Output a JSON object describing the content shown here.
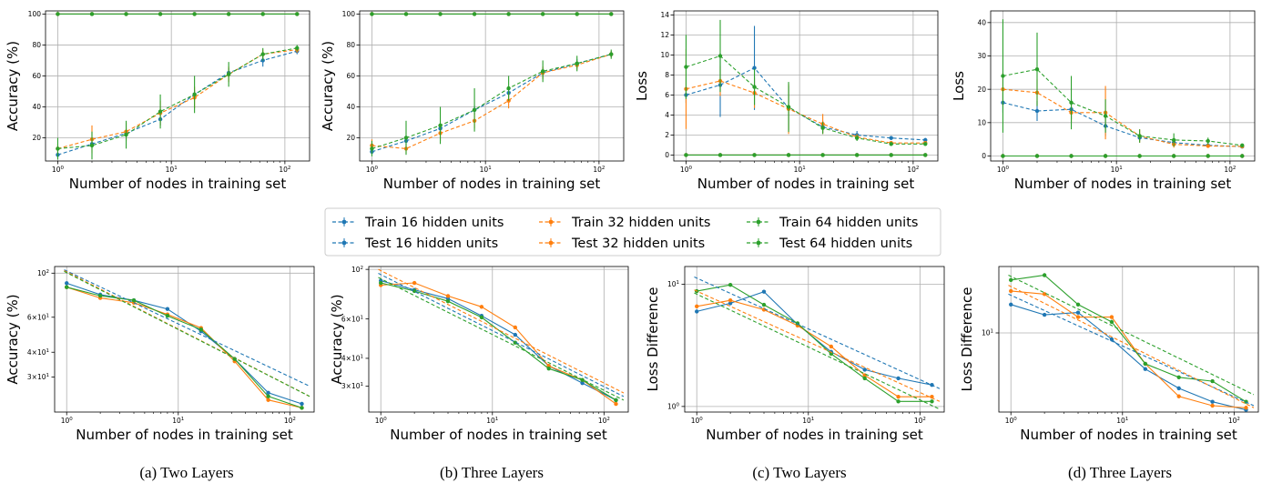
{
  "colors": {
    "blue": "#1f77b4",
    "orange": "#ff7f0e",
    "green": "#2ca02c"
  },
  "x_values": [
    1,
    2,
    4,
    8,
    16,
    32,
    64,
    128
  ],
  "legend": {
    "placement": "center",
    "entries": [
      {
        "label": "Train 16 hidden units",
        "color": "#1f77b4"
      },
      {
        "label": "Test 16 hidden units",
        "color": "#1f77b4"
      },
      {
        "label": "Train 32 hidden units",
        "color": "#ff7f0e"
      },
      {
        "label": "Test 32 hidden units",
        "color": "#ff7f0e"
      },
      {
        "label": "Train 64 hidden units",
        "color": "#2ca02c"
      },
      {
        "label": "Test 64 hidden units",
        "color": "#2ca02c"
      }
    ]
  },
  "captions": [
    "(a) Two Layers",
    "(b) Three Layers",
    "(c) Two Layers",
    "(d) Three Layers"
  ],
  "chart_data": [
    {
      "type": "line",
      "xlabel": "Number of nodes in training set",
      "ylabel": "Accuracy (%)",
      "xscale": "log",
      "ylim": [
        5,
        102
      ],
      "yticks": [
        20,
        40,
        60,
        80,
        100
      ],
      "grid": true,
      "series": [
        {
          "color": "#1f77b4",
          "values": [
            100,
            100,
            100,
            100,
            100,
            100,
            100,
            100
          ]
        },
        {
          "color": "#ff7f0e",
          "values": [
            100,
            100,
            100,
            100,
            100,
            100,
            100,
            100
          ]
        },
        {
          "color": "#2ca02c",
          "values": [
            100,
            100,
            100,
            100,
            100,
            100,
            100,
            100
          ]
        },
        {
          "color": "#1f77b4",
          "dashed": true,
          "values": [
            9,
            16,
            23,
            32,
            48,
            62,
            70,
            76
          ],
          "err": [
            2,
            3,
            3,
            4,
            3,
            3,
            4,
            2
          ]
        },
        {
          "color": "#ff7f0e",
          "dashed": true,
          "values": [
            13,
            19,
            24,
            36,
            46,
            61,
            74,
            77
          ],
          "err": [
            3,
            9,
            6,
            8,
            7,
            5,
            3,
            2
          ]
        },
        {
          "color": "#2ca02c",
          "dashed": true,
          "values": [
            13,
            15,
            22,
            37,
            48,
            61,
            74,
            78
          ],
          "err": [
            7,
            9,
            9,
            11,
            12,
            8,
            4,
            2
          ]
        }
      ]
    },
    {
      "type": "line",
      "xlabel": "Number of nodes in training set",
      "ylabel": "Accuracy (%)",
      "xscale": "log",
      "ylim": [
        5,
        102
      ],
      "yticks": [
        20,
        40,
        60,
        80,
        100
      ],
      "grid": true,
      "series": [
        {
          "color": "#1f77b4",
          "values": [
            100,
            100,
            100,
            100,
            100,
            100,
            100,
            100
          ]
        },
        {
          "color": "#ff7f0e",
          "values": [
            100,
            100,
            100,
            100,
            100,
            100,
            100,
            100
          ]
        },
        {
          "color": "#2ca02c",
          "values": [
            100,
            100,
            100,
            100,
            100,
            100,
            100,
            100
          ]
        },
        {
          "color": "#1f77b4",
          "dashed": true,
          "values": [
            11,
            18,
            26,
            38,
            49,
            62,
            68,
            74
          ],
          "err": [
            2,
            3,
            3,
            3,
            3,
            3,
            3,
            2
          ]
        },
        {
          "color": "#ff7f0e",
          "dashed": true,
          "values": [
            15,
            13,
            23,
            31,
            44,
            62,
            67,
            74
          ],
          "err": [
            4,
            3,
            5,
            5,
            5,
            4,
            3,
            2
          ]
        },
        {
          "color": "#2ca02c",
          "dashed": true,
          "values": [
            13,
            20,
            28,
            38,
            52,
            63,
            68,
            74
          ],
          "err": [
            5,
            11,
            12,
            14,
            8,
            7,
            5,
            3
          ]
        }
      ]
    },
    {
      "type": "line",
      "xlabel": "Number of nodes in training set",
      "ylabel": "Loss",
      "xscale": "log",
      "ylim": [
        -0.6,
        14.4
      ],
      "yticks": [
        0,
        2,
        4,
        6,
        8,
        10,
        12,
        14
      ],
      "grid": true,
      "series": [
        {
          "color": "#1f77b4",
          "values": [
            0,
            0,
            0,
            0,
            0,
            0,
            0,
            0
          ]
        },
        {
          "color": "#ff7f0e",
          "values": [
            0,
            0,
            0,
            0,
            0,
            0,
            0,
            0
          ]
        },
        {
          "color": "#2ca02c",
          "values": [
            0,
            0,
            0,
            0,
            0,
            0,
            0,
            0
          ]
        },
        {
          "color": "#1f77b4",
          "dashed": true,
          "values": [
            6.0,
            7.0,
            8.7,
            4.7,
            2.8,
            2.0,
            1.7,
            1.5
          ],
          "err": [
            0.8,
            3.2,
            4.2,
            2.2,
            0.6,
            0.4,
            0.2,
            0.2
          ]
        },
        {
          "color": "#ff7f0e",
          "dashed": true,
          "values": [
            6.6,
            7.4,
            6.2,
            4.6,
            3.1,
            1.8,
            1.2,
            1.2
          ],
          "err": [
            4.0,
            1.5,
            1.5,
            2.5,
            1.0,
            0.3,
            0.2,
            0.1
          ]
        },
        {
          "color": "#2ca02c",
          "dashed": true,
          "values": [
            8.8,
            9.9,
            6.8,
            4.8,
            2.7,
            1.7,
            1.1,
            1.1
          ],
          "err": [
            3.2,
            3.6,
            1.8,
            2.5,
            0.6,
            0.3,
            0.2,
            0.1
          ]
        }
      ]
    },
    {
      "type": "line",
      "xlabel": "Number of nodes in training set",
      "ylabel": "Loss",
      "xscale": "log",
      "ylim": [
        -1.5,
        43.5
      ],
      "yticks": [
        0,
        10,
        20,
        30,
        40
      ],
      "grid": true,
      "series": [
        {
          "color": "#1f77b4",
          "values": [
            0,
            0,
            0,
            0,
            0,
            0,
            0,
            0
          ]
        },
        {
          "color": "#ff7f0e",
          "values": [
            0,
            0,
            0,
            0,
            0,
            0,
            0,
            0
          ]
        },
        {
          "color": "#2ca02c",
          "values": [
            0,
            0,
            0,
            0,
            0,
            0,
            0,
            0
          ]
        },
        {
          "color": "#1f77b4",
          "dashed": true,
          "values": [
            16,
            13.5,
            14,
            9,
            5.5,
            4,
            3.2,
            2.8
          ],
          "err": [
            3,
            3,
            3,
            3,
            1,
            1,
            0.5,
            0.4
          ]
        },
        {
          "color": "#ff7f0e",
          "dashed": true,
          "values": [
            20,
            19,
            13,
            13,
            6,
            3.5,
            3,
            2.9
          ],
          "err": [
            5,
            4,
            3,
            8,
            2,
            1,
            0.5,
            0.4
          ]
        },
        {
          "color": "#2ca02c",
          "dashed": true,
          "values": [
            24,
            26,
            16,
            12,
            6,
            4.8,
            4.5,
            3.2
          ],
          "err": [
            17,
            11,
            8,
            5,
            2,
            2,
            1,
            0.5
          ]
        }
      ]
    },
    {
      "type": "line",
      "xlabel": "Number of nodes in training set",
      "ylabel": "Accuracy (%)",
      "xscale": "log",
      "yscale": "log",
      "ylim": [
        20,
        108
      ],
      "ytick_labels": [
        "10^2",
        "6×10^1",
        "4×10^1",
        "3×10^1"
      ],
      "series": [
        {
          "color": "#1f77b4",
          "values": [
            89,
            78,
            73,
            66,
            51,
            37,
            25,
            22
          ]
        },
        {
          "color": "#ff7f0e",
          "values": [
            85,
            75,
            71,
            62,
            53,
            36,
            23,
            21
          ]
        },
        {
          "color": "#2ca02c",
          "values": [
            85,
            77,
            73,
            61,
            52,
            37,
            24,
            21
          ]
        },
        {
          "color": "#1f77b4",
          "dashed": true,
          "fit": [
            104,
            27
          ]
        },
        {
          "color": "#ff7f0e",
          "dashed": true,
          "fit": [
            103,
            24
          ]
        },
        {
          "color": "#2ca02c",
          "dashed": true,
          "fit": [
            102,
            24
          ]
        }
      ]
    },
    {
      "type": "line",
      "xlabel": "Number of nodes in training set",
      "ylabel": "Accuracy (%)",
      "xscale": "log",
      "yscale": "log",
      "ylim": [
        23,
        103
      ],
      "ytick_labels": [
        "10^2",
        "6×10^1",
        "4×10^1",
        "3×10^1"
      ],
      "series": [
        {
          "color": "#1f77b4",
          "values": [
            89,
            81,
            74,
            62,
            51,
            37,
            31,
            26
          ]
        },
        {
          "color": "#ff7f0e",
          "values": [
            85,
            87,
            76,
            68,
            55,
            37,
            32,
            25
          ]
        },
        {
          "color": "#2ca02c",
          "values": [
            87,
            80,
            72,
            61,
            47,
            36,
            32,
            26
          ]
        },
        {
          "color": "#1f77b4",
          "dashed": true,
          "fit": [
            96,
            27
          ]
        },
        {
          "color": "#ff7f0e",
          "dashed": true,
          "fit": [
            100,
            28
          ]
        },
        {
          "color": "#2ca02c",
          "dashed": true,
          "fit": [
            92,
            26
          ]
        }
      ]
    },
    {
      "type": "line",
      "xlabel": "Number of nodes in training set",
      "ylabel": "Loss Difference",
      "xscale": "log",
      "yscale": "log",
      "ylim": [
        0.9,
        14
      ],
      "ytick_labels": [
        "10^1",
        "10^0"
      ],
      "series": [
        {
          "color": "#1f77b4",
          "values": [
            6.0,
            7.0,
            8.7,
            4.7,
            2.8,
            2.0,
            1.7,
            1.5
          ]
        },
        {
          "color": "#ff7f0e",
          "values": [
            6.6,
            7.4,
            6.2,
            4.6,
            3.1,
            1.8,
            1.2,
            1.2
          ]
        },
        {
          "color": "#2ca02c",
          "values": [
            8.8,
            9.9,
            6.8,
            4.8,
            2.7,
            1.7,
            1.1,
            1.1
          ]
        },
        {
          "color": "#1f77b4",
          "dashed": true,
          "fit": [
            11.5,
            1.4
          ]
        },
        {
          "color": "#ff7f0e",
          "dashed": true,
          "fit": [
            9.0,
            1.1
          ]
        },
        {
          "color": "#2ca02c",
          "dashed": true,
          "fit": [
            8.5,
            0.95
          ]
        }
      ]
    },
    {
      "type": "line",
      "xlabel": "Number of nodes in training set",
      "ylabel": "Loss Difference",
      "xscale": "log",
      "yscale": "log",
      "ylim": [
        2.7,
        30
      ],
      "ytick_labels": [
        "10^1"
      ],
      "series": [
        {
          "color": "#1f77b4",
          "values": [
            16,
            13.5,
            14,
            9,
            5.5,
            4,
            3.2,
            2.8
          ]
        },
        {
          "color": "#ff7f0e",
          "values": [
            20,
            19,
            13,
            13,
            6,
            3.5,
            3,
            2.9
          ]
        },
        {
          "color": "#2ca02c",
          "values": [
            24,
            26,
            16,
            12,
            6,
            4.8,
            4.5,
            3.2
          ]
        },
        {
          "color": "#1f77b4",
          "dashed": true,
          "fit": [
            19,
            3.0
          ]
        },
        {
          "color": "#ff7f0e",
          "dashed": true,
          "fit": [
            22,
            2.9
          ]
        },
        {
          "color": "#2ca02c",
          "dashed": true,
          "fit": [
            26,
            3.6
          ]
        }
      ]
    }
  ]
}
